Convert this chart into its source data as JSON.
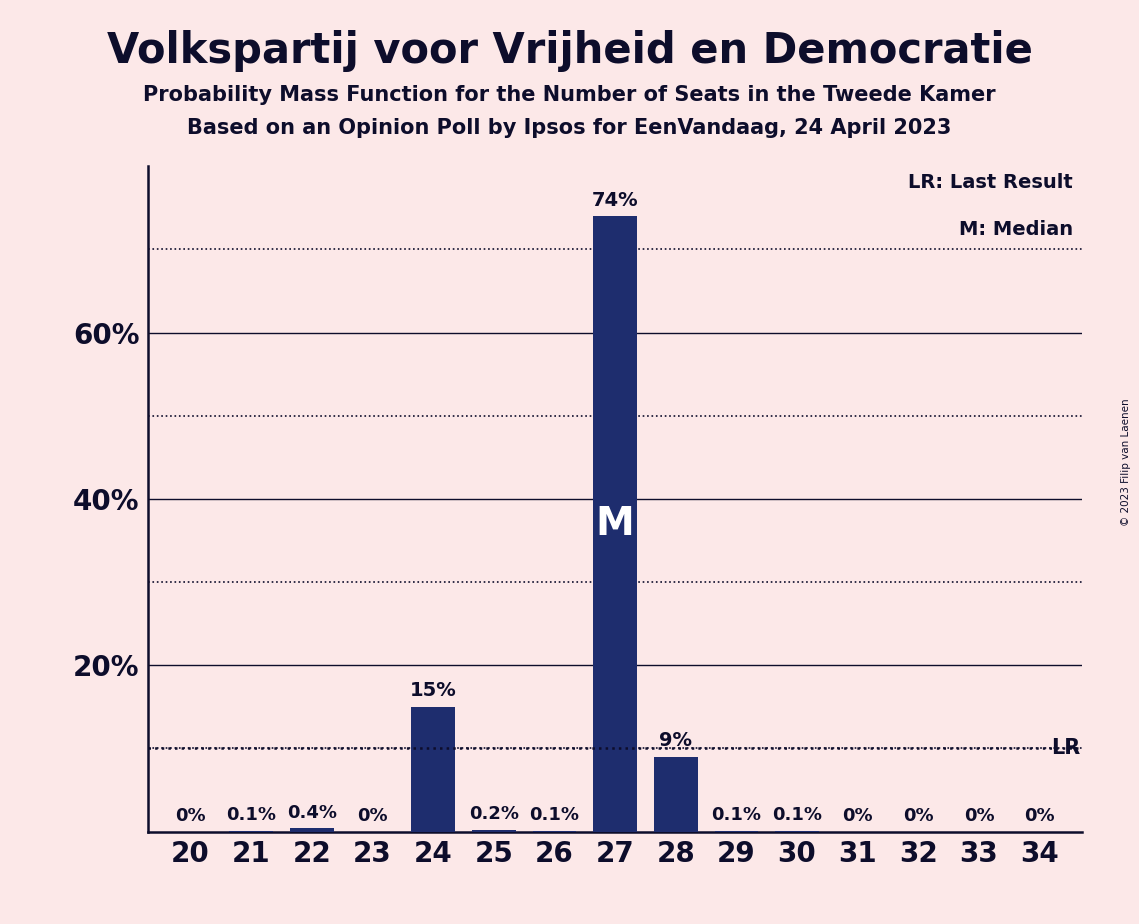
{
  "title": "Volkspartij voor Vrijheid en Democratie",
  "subtitle1": "Probability Mass Function for the Number of Seats in the Tweede Kamer",
  "subtitle2": "Based on an Opinion Poll by Ipsos for EenVandaag, 24 April 2023",
  "copyright": "© 2023 Filip van Laenen",
  "seats": [
    20,
    21,
    22,
    23,
    24,
    25,
    26,
    27,
    28,
    29,
    30,
    31,
    32,
    33,
    34
  ],
  "probabilities": [
    0.0,
    0.1,
    0.4,
    0.0,
    15.0,
    0.2,
    0.1,
    74.0,
    9.0,
    0.1,
    0.1,
    0.0,
    0.0,
    0.0,
    0.0
  ],
  "bar_color": "#1e2d6e",
  "background_color": "#fce8e8",
  "median_seat": 27,
  "lr_value": 10.0,
  "legend_lr": "LR: Last Result",
  "legend_m": "M: Median",
  "ylabel_ticks": [
    20,
    40,
    60
  ],
  "solid_gridlines": [
    20,
    40,
    60
  ],
  "dotted_gridlines": [
    10,
    30,
    50,
    70
  ],
  "ylim": [
    0,
    80
  ],
  "xlim": [
    19.3,
    34.7
  ],
  "bar_width": 0.72
}
